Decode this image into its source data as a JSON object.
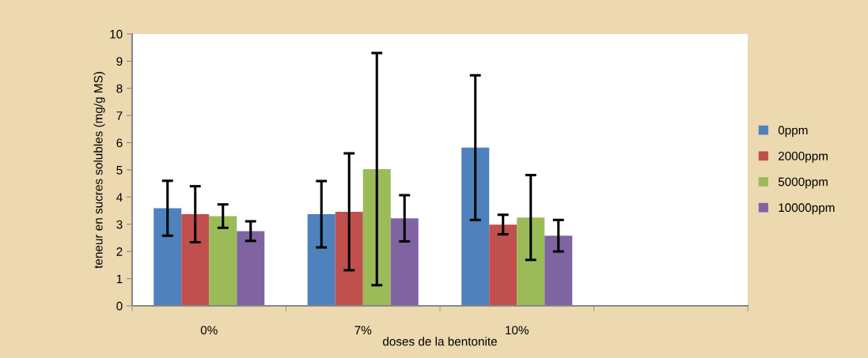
{
  "chart_data": {
    "type": "bar",
    "xlabel": "doses de la bentonite",
    "ylabel": "teneur en sucres solubles (mg/g MS)",
    "categories": [
      "0%",
      "7%",
      "10%",
      null
    ],
    "series": [
      {
        "name": "0ppm",
        "color": "#4f81bd",
        "values": [
          3.59,
          3.37,
          5.82,
          null
        ],
        "errors": [
          1.01,
          1.22,
          2.66,
          null
        ]
      },
      {
        "name": "2000ppm",
        "color": "#c0504d",
        "values": [
          3.37,
          3.46,
          2.99,
          null
        ],
        "errors": [
          1.03,
          2.15,
          0.36,
          null
        ]
      },
      {
        "name": "5000ppm",
        "color": "#9bbb59",
        "values": [
          3.3,
          5.03,
          3.25,
          null
        ],
        "errors": [
          0.43,
          4.27,
          1.56,
          null
        ]
      },
      {
        "name": "10000ppm",
        "color": "#8064a2",
        "values": [
          2.75,
          3.22,
          2.58,
          null
        ],
        "errors": [
          0.36,
          0.85,
          0.58,
          null
        ]
      }
    ],
    "ylim": [
      0,
      10
    ],
    "yticks": [
      0,
      1,
      2,
      3,
      4,
      5,
      6,
      7,
      8,
      9,
      10
    ],
    "grid": false,
    "legend": "right"
  }
}
